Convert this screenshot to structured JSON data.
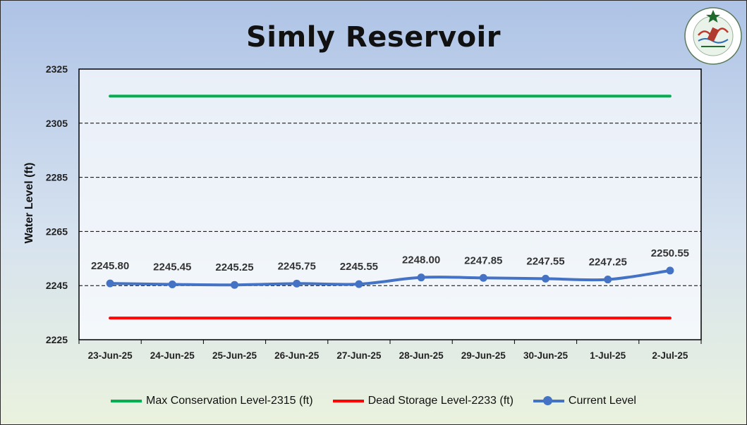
{
  "title": "Simly Reservoir",
  "chart_data": {
    "type": "line",
    "title": "Simly Reservoir",
    "ylabel": "Water Level (ft)",
    "xlabel": "",
    "ylim": [
      2225,
      2325
    ],
    "yticks": [
      2225,
      2245,
      2265,
      2285,
      2305,
      2325
    ],
    "categories": [
      "23-Jun-25",
      "24-Jun-25",
      "25-Jun-25",
      "26-Jun-25",
      "27-Jun-25",
      "28-Jun-25",
      "29-Jun-25",
      "30-Jun-25",
      "1-Jul-25",
      "2-Jul-25"
    ],
    "series": [
      {
        "name": "Max Conservation Level-2315 (ft)",
        "color": "#00b050",
        "markers": false,
        "values": [
          2315,
          2315,
          2315,
          2315,
          2315,
          2315,
          2315,
          2315,
          2315,
          2315
        ]
      },
      {
        "name": "Dead Storage Level-2233 (ft)",
        "color": "#ff0000",
        "markers": false,
        "values": [
          2233,
          2233,
          2233,
          2233,
          2233,
          2233,
          2233,
          2233,
          2233,
          2233
        ]
      },
      {
        "name": "Current Level",
        "color": "#4472c4",
        "markers": true,
        "values": [
          2245.8,
          2245.45,
          2245.25,
          2245.75,
          2245.55,
          2248.0,
          2247.85,
          2247.55,
          2247.25,
          2250.55
        ],
        "labels": [
          "2245.80",
          "2245.45",
          "2245.25",
          "2245.75",
          "2245.55",
          "2248.00",
          "2247.85",
          "2247.55",
          "2247.25",
          "2250.55"
        ]
      }
    ],
    "grid": "horizontal dashed",
    "legend_position": "bottom"
  }
}
